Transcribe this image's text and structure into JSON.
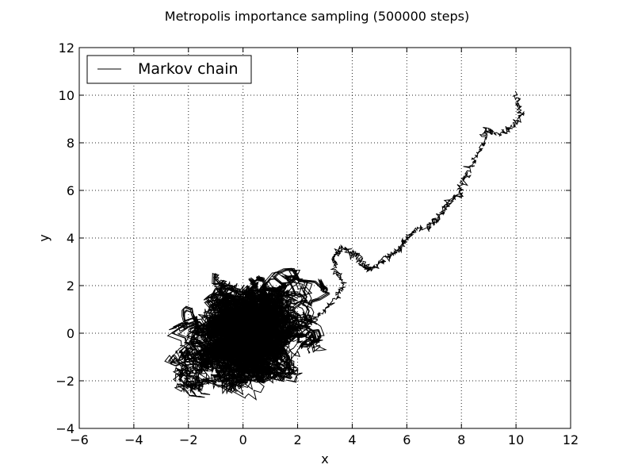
{
  "chart_data": {
    "type": "line",
    "title": "Metropolis importance sampling (500000 steps)",
    "xlabel": "x",
    "ylabel": "y",
    "xlim": [
      -6,
      12
    ],
    "ylim": [
      -4,
      12
    ],
    "xticks": [
      -6,
      -4,
      -2,
      0,
      2,
      4,
      6,
      8,
      10,
      12
    ],
    "yticks": [
      -4,
      -2,
      0,
      2,
      4,
      6,
      8,
      10,
      12
    ],
    "xtick_labels": [
      "−6",
      "−4",
      "−2",
      "0",
      "2",
      "4",
      "6",
      "8",
      "10",
      "12"
    ],
    "ytick_labels": [
      "−4",
      "−2",
      "0",
      "2",
      "4",
      "6",
      "8",
      "10",
      "12"
    ],
    "grid": true,
    "legend": {
      "position": "upper-left",
      "entries": [
        "Markov chain"
      ]
    },
    "series": [
      {
        "name": "Markov chain",
        "color": "#000000",
        "start": [
          10.0,
          10.1
        ],
        "path_waypoints": [
          [
            10.0,
            10.1
          ],
          [
            10.1,
            9.6
          ],
          [
            10.2,
            9.1
          ],
          [
            9.8,
            8.6
          ],
          [
            9.3,
            8.3
          ],
          [
            8.9,
            8.6
          ],
          [
            8.8,
            8.0
          ],
          [
            8.6,
            7.5
          ],
          [
            8.3,
            6.9
          ],
          [
            8.0,
            6.3
          ],
          [
            7.9,
            5.8
          ],
          [
            7.6,
            5.6
          ],
          [
            7.4,
            5.2
          ],
          [
            7.1,
            4.8
          ],
          [
            6.8,
            4.5
          ],
          [
            6.3,
            4.3
          ],
          [
            6.0,
            4.0
          ],
          [
            5.8,
            3.6
          ],
          [
            5.5,
            3.3
          ],
          [
            5.2,
            3.1
          ],
          [
            4.9,
            2.8
          ],
          [
            4.6,
            2.7
          ],
          [
            4.4,
            2.9
          ],
          [
            4.2,
            3.3
          ],
          [
            3.9,
            3.4
          ],
          [
            3.6,
            3.6
          ],
          [
            3.3,
            3.2
          ],
          [
            3.4,
            2.6
          ],
          [
            3.7,
            2.1
          ],
          [
            3.5,
            1.6
          ],
          [
            3.0,
            1.0
          ],
          [
            2.6,
            0.5
          ],
          [
            2.0,
            0.2
          ],
          [
            1.3,
            0.0
          ],
          [
            0.6,
            0.0
          ],
          [
            0.0,
            0.0
          ]
        ],
        "cloud": {
          "center": [
            0.0,
            0.0
          ],
          "sd": [
            1.0,
            1.0
          ],
          "steps": 500000
        }
      }
    ]
  }
}
